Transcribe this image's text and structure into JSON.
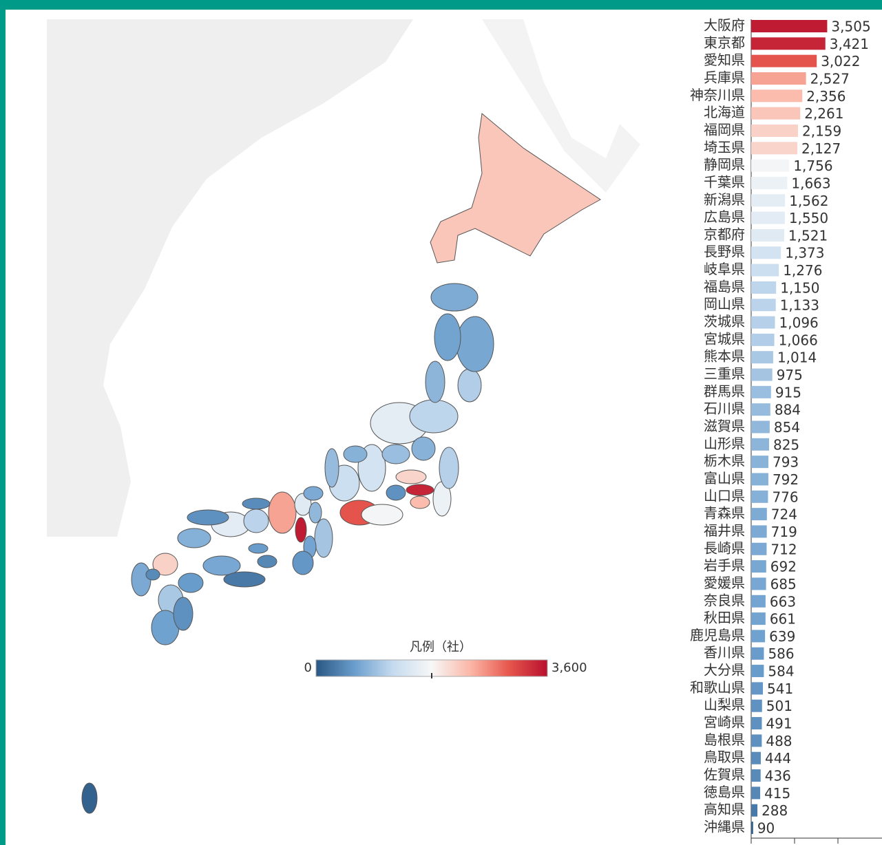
{
  "chart_data": {
    "type": "bar",
    "categories": [
      "大阪府",
      "東京都",
      "愛知県",
      "兵庫県",
      "神奈川県",
      "北海道",
      "福岡県",
      "埼玉県",
      "静岡県",
      "千葉県",
      "新潟県",
      "広島県",
      "京都府",
      "長野県",
      "岐阜県",
      "福島県",
      "岡山県",
      "茨城県",
      "宮城県",
      "熊本県",
      "三重県",
      "群馬県",
      "石川県",
      "滋賀県",
      "山形県",
      "栃木県",
      "富山県",
      "山口県",
      "青森県",
      "福井県",
      "長崎県",
      "岩手県",
      "愛媛県",
      "奈良県",
      "秋田県",
      "鹿児島県",
      "香川県",
      "大分県",
      "和歌山県",
      "山梨県",
      "宮崎県",
      "島根県",
      "鳥取県",
      "佐賀県",
      "徳島県",
      "高知県",
      "沖縄県"
    ],
    "values": [
      3505,
      3421,
      3022,
      2527,
      2356,
      2261,
      2159,
      2127,
      1756,
      1663,
      1562,
      1550,
      1521,
      1373,
      1276,
      1150,
      1133,
      1096,
      1066,
      1014,
      975,
      915,
      884,
      854,
      825,
      793,
      792,
      776,
      724,
      719,
      712,
      692,
      685,
      663,
      661,
      639,
      586,
      584,
      541,
      501,
      491,
      488,
      444,
      436,
      415,
      288,
      90
    ],
    "value_labels": [
      "3,505",
      "3,421",
      "3,022",
      "2,527",
      "2,356",
      "2,261",
      "2,159",
      "2,127",
      "1,756",
      "1,663",
      "1,562",
      "1,550",
      "1,521",
      "1,373",
      "1,276",
      "1,150",
      "1,133",
      "1,096",
      "1,066",
      "1,014",
      "975",
      "915",
      "884",
      "854",
      "825",
      "793",
      "792",
      "776",
      "724",
      "719",
      "712",
      "692",
      "685",
      "663",
      "661",
      "639",
      "586",
      "584",
      "541",
      "501",
      "491",
      "488",
      "444",
      "436",
      "415",
      "288",
      "90"
    ],
    "xlim": [
      0,
      6000
    ],
    "xticks": [
      0,
      2000,
      4000
    ],
    "color_scale": {
      "title": "凡例（社）",
      "ticks": [
        0,
        {
          "value": 3600,
          "label": "3,600"
        }
      ],
      "center": 1800,
      "colors": [
        "#2a5783",
        "#6a9ecd",
        "#c6dbef",
        "#f7f7f7",
        "#fbb7a7",
        "#e7574d",
        "#b8102e"
      ]
    }
  }
}
